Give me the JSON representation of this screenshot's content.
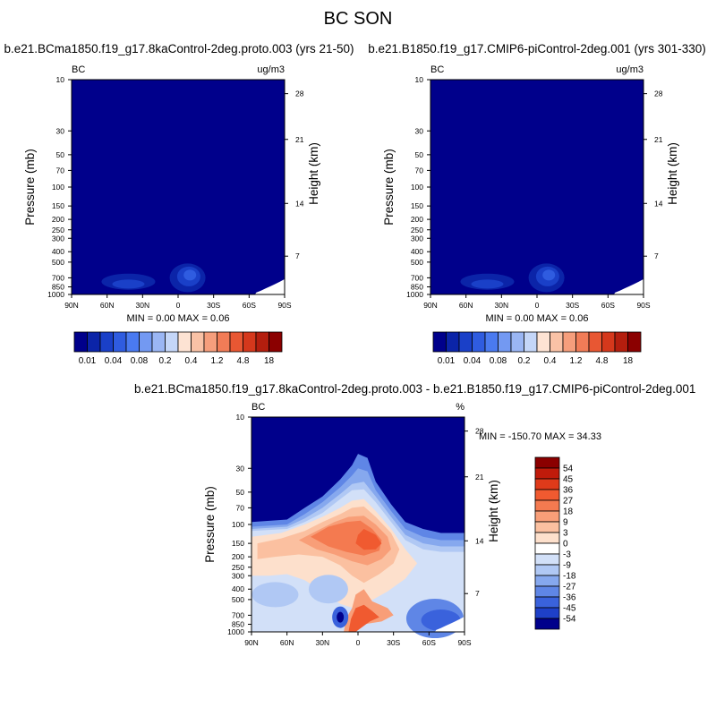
{
  "figure": {
    "title": "BC SON"
  },
  "chart_data": [
    {
      "type": "heatmap",
      "panel": "left",
      "title": "b.e21.BCma1850.f19_g17.8kaControl-2deg.proto.003 (yrs 21-50)",
      "left_label": "BC",
      "right_label": "ug/m3",
      "xlabel": "",
      "ylabel": "Pressure (mb)",
      "y2label": "Height (km)",
      "x_ticks": [
        "90N",
        "60N",
        "30N",
        "0",
        "30S",
        "60S",
        "90S"
      ],
      "y_ticks": [
        "10",
        "30",
        "50",
        "70",
        "100",
        "150",
        "200",
        "250",
        "300",
        "400",
        "500",
        "700",
        "850",
        "1000"
      ],
      "y2_ticks": [
        "28",
        "21",
        "14",
        "7"
      ],
      "min_text": "MIN =   0.00  MAX =   0.06",
      "min": 0.0,
      "max": 0.06,
      "colorbar": {
        "labels": [
          "0.01",
          "0.04",
          "0.08",
          "0.2",
          "0.4",
          "1.2",
          "4.8",
          "18"
        ],
        "colors": [
          "#00008b",
          "#0b24a8",
          "#1a40c8",
          "#2f5ce0",
          "#4a7af0",
          "#7399f2",
          "#9ab6f4",
          "#c4d6f8",
          "#fde3d3",
          "#f9c2a6",
          "#f69e7c",
          "#f17c57",
          "#e85733",
          "#d5381c",
          "#b41e0e",
          "#8b0000"
        ]
      },
      "features": "Field near zero everywhere (darkest blue) except faint plumes near the surface around 45N and 10S"
    },
    {
      "type": "heatmap",
      "panel": "right",
      "title": "b.e21.B1850.f19_g17.CMIP6-piControl-2deg.001 (yrs 301-330)",
      "left_label": "BC",
      "right_label": "ug/m3",
      "xlabel": "",
      "ylabel": "Pressure (mb)",
      "y2label": "Height (km)",
      "x_ticks": [
        "90N",
        "60N",
        "30N",
        "0",
        "30S",
        "60S",
        "90S"
      ],
      "y_ticks": [
        "10",
        "30",
        "50",
        "70",
        "100",
        "150",
        "200",
        "250",
        "300",
        "400",
        "500",
        "700",
        "850",
        "1000"
      ],
      "y2_ticks": [
        "28",
        "21",
        "14",
        "7"
      ],
      "min_text": "MIN =   0.00  MAX =   0.06",
      "min": 0.0,
      "max": 0.06,
      "colorbar": {
        "labels": [
          "0.01",
          "0.04",
          "0.08",
          "0.2",
          "0.4",
          "1.2",
          "4.8",
          "18"
        ],
        "colors": [
          "#00008b",
          "#0b24a8",
          "#1a40c8",
          "#2f5ce0",
          "#4a7af0",
          "#7399f2",
          "#9ab6f4",
          "#c4d6f8",
          "#fde3d3",
          "#f9c2a6",
          "#f69e7c",
          "#f17c57",
          "#e85733",
          "#d5381c",
          "#b41e0e",
          "#8b0000"
        ]
      }
    },
    {
      "type": "heatmap",
      "panel": "difference",
      "title": "b.e21.BCma1850.f19_g17.8kaControl-2deg.proto.003 - b.e21.B1850.f19_g17.CMIP6-piControl-2deg.001",
      "left_label": "BC",
      "right_label": "%",
      "xlabel": "",
      "ylabel": "Pressure (mb)",
      "y2label": "Height (km)",
      "x_ticks": [
        "90N",
        "60N",
        "30N",
        "0",
        "30S",
        "60S",
        "90S"
      ],
      "y_ticks": [
        "10",
        "30",
        "50",
        "70",
        "100",
        "150",
        "200",
        "250",
        "300",
        "400",
        "500",
        "700",
        "850",
        "1000"
      ],
      "y2_ticks": [
        "28",
        "21",
        "14",
        "7"
      ],
      "min_text": "MIN = -150.70  MAX =  34.33",
      "min": -150.7,
      "max": 34.33,
      "colorbar": {
        "labels": [
          "54",
          "45",
          "36",
          "27",
          "18",
          "9",
          "3",
          "0",
          "-3",
          "-9",
          "-18",
          "-27",
          "-36",
          "-45",
          "-54"
        ],
        "colors": [
          "#8b0000",
          "#c01b0b",
          "#df3a1a",
          "#f05a30",
          "#f47a50",
          "#f89e78",
          "#fbc0a0",
          "#fde0cc",
          "#ffffff",
          "#d2e0f8",
          "#b0c8f4",
          "#86a8ee",
          "#5f86e6",
          "#3a62dc",
          "#1e40c8",
          "#00008b"
        ]
      }
    }
  ]
}
